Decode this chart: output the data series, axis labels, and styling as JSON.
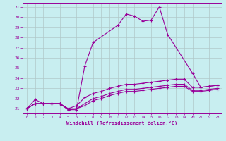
{
  "xlabel": "Windchill (Refroidissement éolien,°C)",
  "background_color": "#c8eef0",
  "line_color": "#990099",
  "x_hours": [
    0,
    1,
    2,
    3,
    4,
    5,
    6,
    7,
    8,
    9,
    10,
    11,
    12,
    13,
    14,
    15,
    16,
    17,
    18,
    19,
    20,
    21,
    22,
    23
  ],
  "series1_x": [
    0,
    1,
    2,
    3,
    4,
    5,
    6,
    7,
    8,
    11,
    12,
    13,
    14,
    15,
    16,
    17,
    20,
    21,
    22,
    23
  ],
  "series1_y": [
    21.0,
    21.9,
    21.5,
    21.5,
    21.5,
    20.9,
    20.9,
    25.2,
    27.5,
    29.2,
    30.3,
    30.1,
    29.6,
    29.7,
    31.0,
    28.3,
    24.5,
    23.1,
    23.2,
    23.3
  ],
  "series2_x": [
    0,
    1,
    2,
    3,
    4,
    5,
    6,
    7,
    8,
    9,
    10,
    11,
    12,
    13,
    14,
    15,
    16,
    17,
    18,
    19,
    20,
    21,
    22,
    23
  ],
  "series2_y": [
    21.0,
    21.5,
    21.5,
    21.5,
    21.5,
    21.0,
    21.3,
    22.1,
    22.5,
    22.7,
    23.0,
    23.2,
    23.4,
    23.4,
    23.5,
    23.6,
    23.7,
    23.8,
    23.9,
    23.9,
    23.1,
    23.1,
    23.2,
    23.3
  ],
  "series3_x": [
    0,
    1,
    2,
    3,
    4,
    5,
    6,
    7,
    8,
    9,
    10,
    11,
    12,
    13,
    14,
    15,
    16,
    17,
    18,
    19,
    20,
    21,
    22,
    23
  ],
  "series3_y": [
    21.0,
    21.5,
    21.5,
    21.5,
    21.5,
    21.0,
    21.0,
    21.5,
    22.0,
    22.2,
    22.5,
    22.7,
    22.9,
    22.9,
    23.0,
    23.1,
    23.2,
    23.3,
    23.4,
    23.4,
    22.8,
    22.8,
    22.9,
    23.0
  ],
  "series4_x": [
    0,
    1,
    2,
    3,
    4,
    5,
    6,
    7,
    8,
    9,
    10,
    11,
    12,
    13,
    14,
    15,
    16,
    17,
    18,
    19,
    20,
    21,
    22,
    23
  ],
  "series4_y": [
    21.0,
    21.5,
    21.5,
    21.5,
    21.5,
    20.9,
    21.0,
    21.3,
    21.8,
    22.0,
    22.3,
    22.5,
    22.7,
    22.7,
    22.8,
    22.9,
    23.0,
    23.1,
    23.2,
    23.2,
    22.7,
    22.7,
    22.8,
    22.9
  ],
  "ylim_min": 20.6,
  "ylim_max": 31.4,
  "yticks": [
    21,
    22,
    23,
    24,
    25,
    26,
    27,
    28,
    29,
    30,
    31
  ],
  "grid_color": "#b0c8c8",
  "grid_major_color": "#9ab8ba"
}
